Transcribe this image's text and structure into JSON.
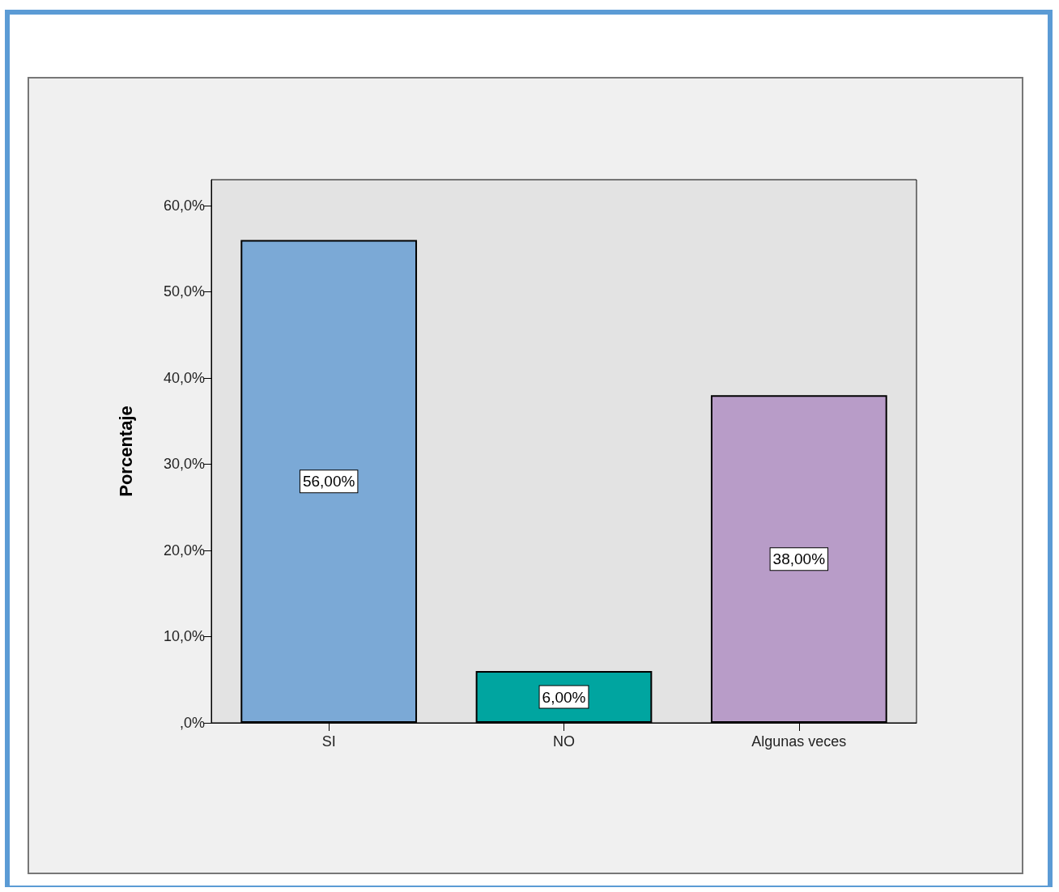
{
  "chart_data": {
    "type": "bar",
    "ylabel": "Porcentaje",
    "categories": [
      "SI",
      "NO",
      "Algunas veces"
    ],
    "values": [
      56,
      6,
      38
    ],
    "colors": [
      "#7ba9d6",
      "#00a5a0",
      "#b89cc8"
    ],
    "value_labels": [
      "56,00%",
      "6,00%",
      "38,00%"
    ],
    "ylim": [
      0,
      63
    ],
    "yticks": [
      {
        "value": 0,
        "label": ",0%"
      },
      {
        "value": 10,
        "label": "10,0%"
      },
      {
        "value": 20,
        "label": "20,0%"
      },
      {
        "value": 30,
        "label": "30,0%"
      },
      {
        "value": 40,
        "label": "40,0%"
      },
      {
        "value": 50,
        "label": "50,0%"
      },
      {
        "value": 60,
        "label": "60,0%"
      }
    ],
    "grid": false
  }
}
